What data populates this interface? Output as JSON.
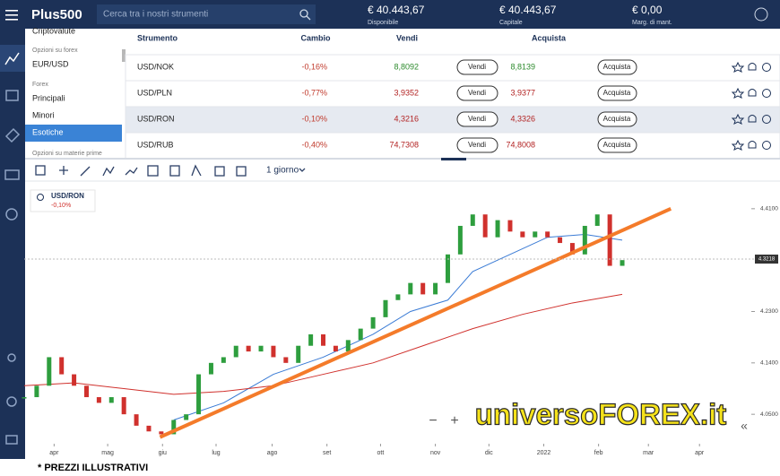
{
  "header": {
    "logo": "Plus500",
    "search_placeholder": "Cerca tra i nostri strumenti",
    "stats": [
      {
        "value": "€ 40.443,67",
        "label": "Disponibile"
      },
      {
        "value": "€ 40.443,67",
        "label": "Capitale"
      },
      {
        "value": "€ 0,00",
        "label": "Marg. di mant."
      }
    ]
  },
  "menu": [
    "Criptovalute",
    "Opzioni su forex",
    "EUR/USD",
    "Forex",
    "Principali",
    "Minori",
    "Esotiche",
    "Opzioni su materie prime"
  ],
  "table": {
    "columns": [
      "Strumento",
      "Cambio",
      "Vendi",
      "Acquista"
    ],
    "sell_button": "Vendi",
    "buy_button": "Acquista",
    "selected_row": 2,
    "rows": [
      {
        "instrument": "USD/NOK",
        "change": "-0,16%",
        "sell": "8,8092",
        "buy": "8,8139",
        "sell_color": "#2e8b2e",
        "buy_color": "#2e8b2e"
      },
      {
        "instrument": "USD/PLN",
        "change": "-0,77%",
        "sell": "3,9352",
        "buy": "3,9377",
        "sell_color": "#b22222",
        "buy_color": "#b22222"
      },
      {
        "instrument": "USD/RON",
        "change": "-0,10%",
        "sell": "4,3216",
        "buy": "4,3326",
        "sell_color": "#b22222",
        "buy_color": "#b22222"
      },
      {
        "instrument": "USD/RUB",
        "change": "-0,40%",
        "sell": "74,7308",
        "buy": "74,8008",
        "sell_color": "#b22222",
        "buy_color": "#b22222"
      }
    ]
  },
  "toolbar": {
    "timeframe": "1 giorno"
  },
  "chart_data": {
    "type": "candlestick",
    "name": "USD/RON",
    "change": "-0,10%",
    "up_color": "#2e9e3e",
    "down_color": "#d0312d",
    "x": [
      2,
      3,
      4,
      5,
      6,
      7,
      8,
      9,
      10,
      11,
      12,
      13,
      14,
      15,
      16,
      17,
      18,
      19,
      20,
      21,
      22,
      23,
      24,
      25,
      26,
      27,
      28,
      29,
      30,
      31,
      32,
      33,
      34,
      35,
      36,
      37,
      38,
      39,
      40,
      41,
      42,
      43,
      44,
      45,
      46,
      47,
      48,
      49,
      50
    ],
    "values": [
      4.08,
      4.1,
      4.15,
      4.12,
      4.1,
      4.08,
      4.07,
      4.08,
      4.05,
      4.03,
      4.02,
      4.015,
      4.04,
      4.05,
      4.12,
      4.14,
      4.15,
      4.17,
      4.16,
      4.17,
      4.15,
      4.14,
      4.17,
      4.19,
      4.17,
      4.16,
      4.18,
      4.2,
      4.22,
      4.25,
      4.26,
      4.28,
      4.26,
      4.28,
      4.33,
      4.38,
      4.4,
      4.36,
      4.39,
      4.37,
      4.36,
      4.37,
      4.36,
      4.35,
      4.33,
      4.38,
      4.4,
      4.31,
      4.32
    ],
    "series": [
      {
        "name": "MA",
        "color": "#3a7bd5",
        "x": [
          14,
          18,
          22,
          26,
          30,
          33,
          36,
          38,
          41,
          44,
          47,
          50
        ],
        "values": [
          4.04,
          4.07,
          4.12,
          4.15,
          4.19,
          4.23,
          4.25,
          4.3,
          4.33,
          4.36,
          4.365,
          4.355
        ]
      },
      {
        "name": "MA2",
        "color": "#d0312d",
        "x": [
          2,
          6,
          10,
          14,
          18,
          22,
          26,
          30,
          34,
          38,
          42,
          46,
          50
        ],
        "values": [
          4.1,
          4.105,
          4.095,
          4.085,
          4.09,
          4.1,
          4.12,
          4.14,
          4.17,
          4.2,
          4.225,
          4.245,
          4.26
        ]
      }
    ],
    "trendline": {
      "color": "#f47b2a",
      "x": [
        12.9,
        53.9
      ],
      "values": [
        4.01,
        4.41
      ]
    },
    "last_price": 4.3218,
    "xlim": [
      2,
      60
    ],
    "ylim": [
      4.0,
      4.46
    ],
    "yticks": [
      {
        "value": 4.41,
        "label": "4.4100"
      },
      {
        "value": 4.23,
        "label": "4.2300"
      },
      {
        "value": 4.14,
        "label": "4.1400"
      },
      {
        "value": 4.05,
        "label": "4.0500"
      }
    ],
    "xticks": [
      {
        "value": 4.4,
        "label": "apr"
      },
      {
        "value": 8.7,
        "label": "mag"
      },
      {
        "value": 13.1,
        "label": "giu"
      },
      {
        "value": 17.4,
        "label": "lug"
      },
      {
        "value": 21.9,
        "label": "ago"
      },
      {
        "value": 26.3,
        "label": "set"
      },
      {
        "value": 30.6,
        "label": "ott"
      },
      {
        "value": 35.0,
        "label": "nov"
      },
      {
        "value": 39.3,
        "label": "dic"
      },
      {
        "value": 43.7,
        "label": "2022"
      },
      {
        "value": 48.1,
        "label": "feb"
      },
      {
        "value": 52.1,
        "label": "mar"
      },
      {
        "value": 56.2,
        "label": "apr"
      }
    ]
  },
  "watermark": "universoFOREX.it",
  "footer": "* PREZZI ILLUSTRATIVI"
}
